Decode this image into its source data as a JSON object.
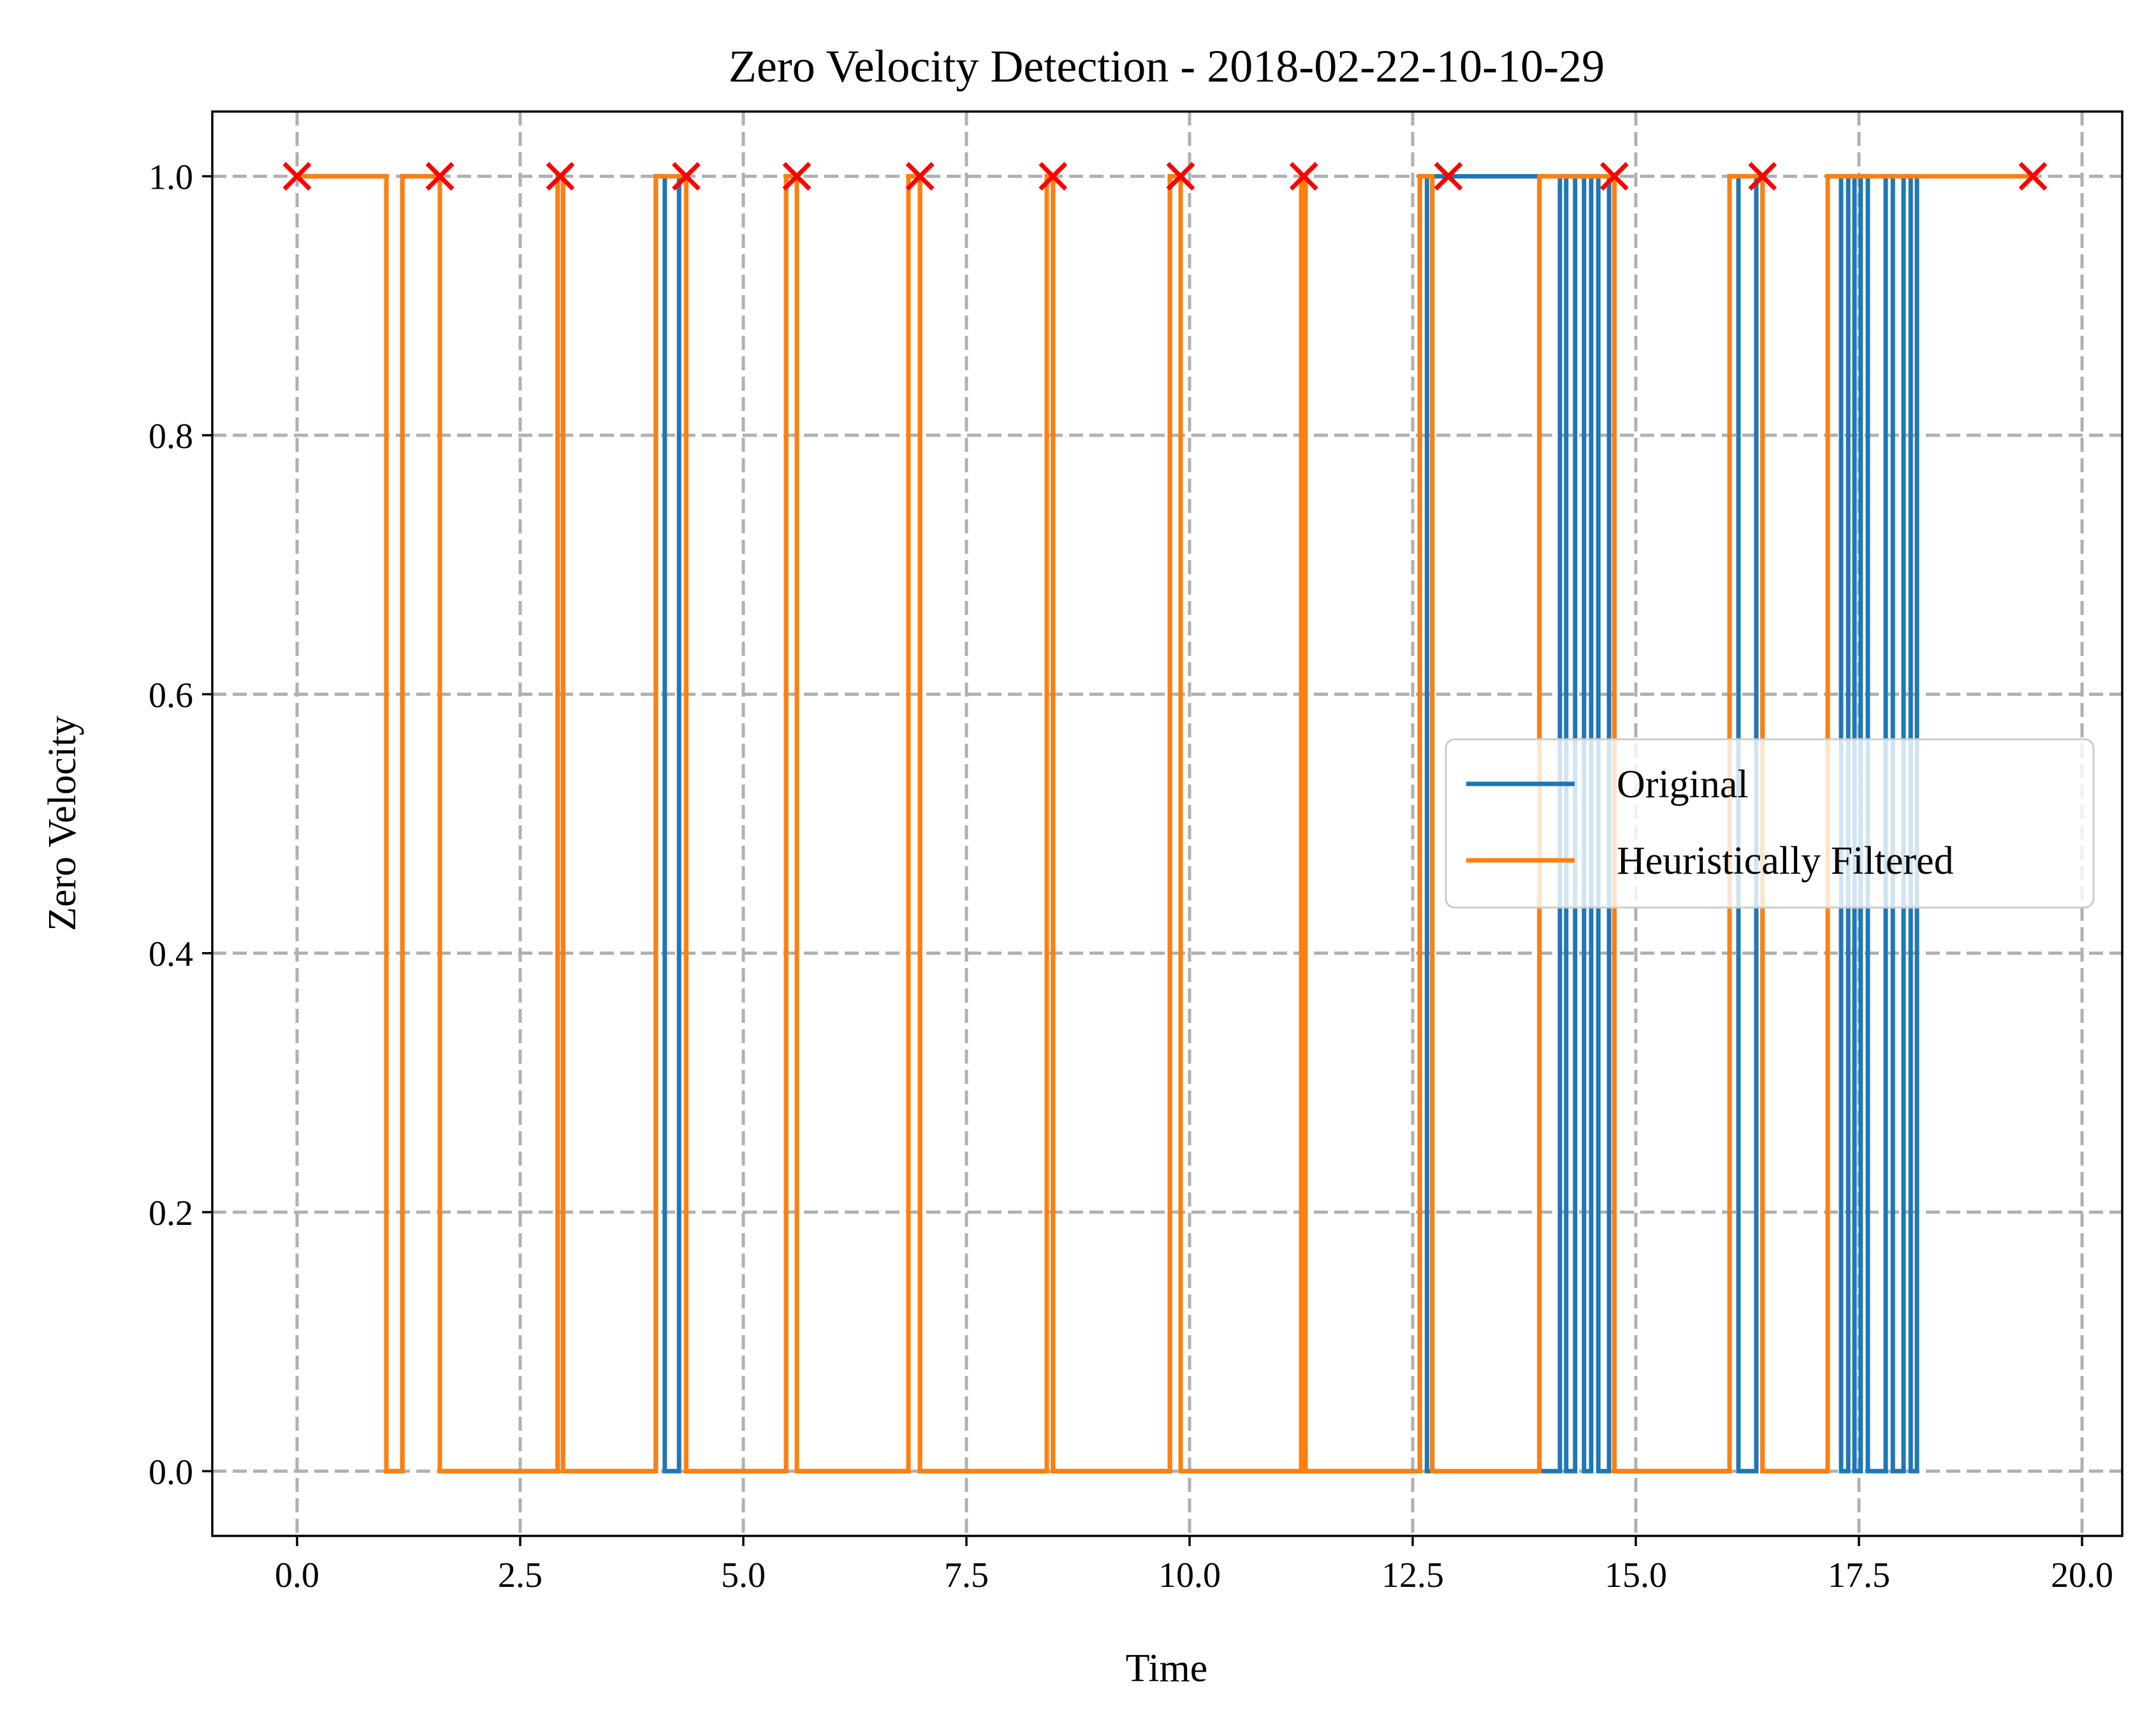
{
  "chart_data": {
    "type": "line",
    "title": "Zero Velocity Detection - 2018-02-22-10-10-29",
    "xlabel": "Time",
    "ylabel": "Zero Velocity",
    "xlim": [
      -0.95,
      20.45
    ],
    "ylim": [
      -0.05,
      1.05
    ],
    "xticks": [
      0.0,
      2.5,
      5.0,
      7.5,
      10.0,
      12.5,
      15.0,
      17.5,
      20.0
    ],
    "xtick_labels": [
      "0.0",
      "2.5",
      "5.0",
      "7.5",
      "10.0",
      "12.5",
      "15.0",
      "17.5",
      "20.0"
    ],
    "yticks": [
      0.0,
      0.2,
      0.4,
      0.6,
      0.8,
      1.0
    ],
    "ytick_labels": [
      "0.0",
      "0.2",
      "0.4",
      "0.6",
      "0.8",
      "1.0"
    ],
    "grid": true,
    "legend_position": "center-right",
    "series": [
      {
        "name": "Original",
        "color": "#1f77b4",
        "style": "step",
        "x": [
          0.0,
          1.0,
          1.0,
          1.18,
          1.18,
          1.6,
          1.6,
          2.92,
          2.92,
          2.98,
          2.98,
          4.02,
          4.02,
          4.12,
          4.12,
          4.28,
          4.28,
          4.36,
          4.36,
          5.48,
          5.48,
          5.6,
          5.6,
          6.85,
          6.85,
          6.98,
          6.98,
          8.4,
          8.4,
          8.47,
          8.47,
          9.78,
          9.78,
          9.9,
          9.9,
          11.25,
          11.25,
          11.3,
          11.3,
          12.58,
          12.58,
          12.66,
          12.66,
          12.72,
          12.72,
          13.92,
          13.92,
          14.15,
          14.15,
          14.22,
          14.22,
          14.32,
          14.32,
          14.42,
          14.42,
          14.5,
          14.5,
          14.58,
          14.58,
          14.7,
          14.7,
          14.76,
          14.76,
          16.05,
          16.05,
          16.15,
          16.15,
          16.35,
          16.35,
          16.42,
          16.42,
          17.15,
          17.15,
          17.3,
          17.3,
          17.38,
          17.38,
          17.45,
          17.45,
          17.52,
          17.52,
          17.6,
          17.6,
          17.8,
          17.8,
          17.88,
          17.88,
          18.0,
          18.0,
          18.08,
          18.08,
          18.15,
          18.15
        ],
        "y": [
          1,
          1,
          0,
          0,
          1,
          1,
          0,
          0,
          1,
          1,
          0,
          0,
          1,
          1,
          0,
          0,
          1,
          1,
          0,
          0,
          1,
          1,
          0,
          0,
          1,
          1,
          0,
          0,
          1,
          1,
          0,
          0,
          1,
          1,
          0,
          0,
          1,
          1,
          0,
          0,
          1,
          1,
          0,
          0,
          1,
          1,
          0,
          0,
          1,
          1,
          0,
          0,
          1,
          1,
          0,
          0,
          1,
          1,
          0,
          0,
          1,
          1,
          0,
          0,
          1,
          1,
          0,
          0,
          1,
          1,
          0,
          0,
          1,
          1,
          0,
          0,
          1,
          1,
          0,
          0,
          1,
          1,
          0,
          0,
          1,
          1,
          0,
          0,
          1,
          1,
          0,
          0,
          1
        ]
      },
      {
        "name": "Heuristically Filtered",
        "color": "#ff7f0e",
        "style": "step",
        "x": [
          0.0,
          1.0,
          1.0,
          1.18,
          1.18,
          1.6,
          1.6,
          2.92,
          2.92,
          2.98,
          2.98,
          4.02,
          4.02,
          4.36,
          4.36,
          5.48,
          5.48,
          5.6,
          5.6,
          6.85,
          6.85,
          6.98,
          6.98,
          8.4,
          8.4,
          8.47,
          8.47,
          9.78,
          9.78,
          9.9,
          9.9,
          11.25,
          11.25,
          11.3,
          11.3,
          12.58,
          12.58,
          12.72,
          12.72,
          13.92,
          13.92,
          14.76,
          14.76,
          16.05,
          16.05,
          16.42,
          16.42,
          17.15,
          17.15,
          19.45
        ],
        "y": [
          1,
          1,
          0,
          0,
          1,
          1,
          0,
          0,
          1,
          1,
          0,
          0,
          1,
          1,
          0,
          0,
          1,
          1,
          0,
          0,
          1,
          1,
          0,
          0,
          1,
          1,
          0,
          0,
          1,
          1,
          0,
          0,
          1,
          1,
          0,
          0,
          1,
          1,
          0,
          0,
          1,
          1,
          0,
          0,
          1,
          1,
          0,
          0,
          1,
          1
        ]
      }
    ],
    "markers": {
      "symbol": "x",
      "color": "#ff0000",
      "x": [
        0.0,
        1.6,
        2.95,
        4.36,
        5.6,
        6.98,
        8.47,
        9.9,
        11.28,
        12.9,
        14.76,
        16.42,
        19.45
      ],
      "y": [
        1,
        1,
        1,
        1,
        1,
        1,
        1,
        1,
        1,
        1,
        1,
        1,
        1
      ]
    }
  }
}
